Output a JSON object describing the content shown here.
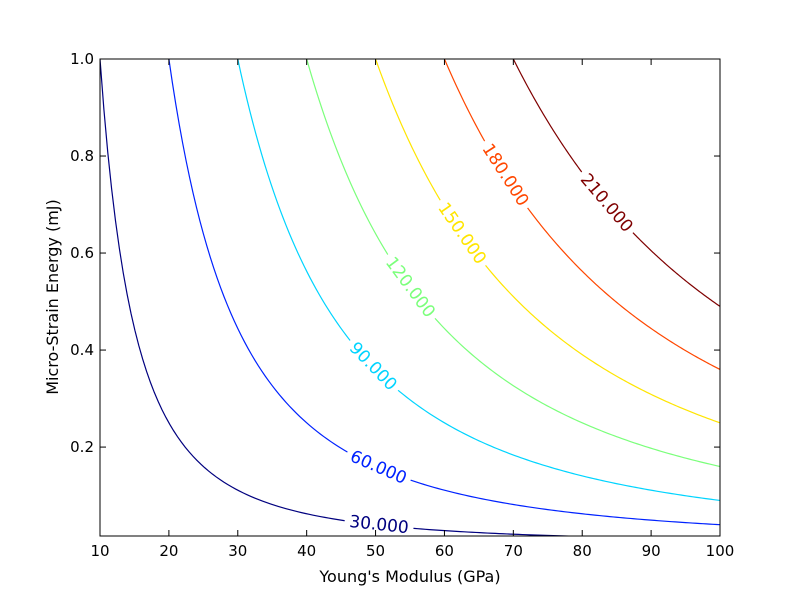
{
  "chart_data": {
    "type": "contour",
    "title": "",
    "xlabel": "Young's Modulus (GPa)",
    "ylabel": "Micro-Strain Energy (mJ)",
    "xlim": [
      10,
      100
    ],
    "ylim": [
      0.0167,
      1.0
    ],
    "xticks": [
      "10",
      "20",
      "30",
      "40",
      "50",
      "60",
      "70",
      "80",
      "90",
      "100"
    ],
    "yticks": [
      "0.2",
      "0.4",
      "0.6",
      "0.8",
      "1.0"
    ],
    "grid": false,
    "legend": "none",
    "levels": [
      {
        "label": "30.000",
        "value": 30,
        "color": "#00007f"
      },
      {
        "label": "60.000",
        "value": 60,
        "color": "#0022ff"
      },
      {
        "label": "90.000",
        "value": 90,
        "color": "#00d4ff"
      },
      {
        "label": "120.000",
        "value": 120,
        "color": "#7bff7b"
      },
      {
        "label": "150.000",
        "value": 150,
        "color": "#ffe500"
      },
      {
        "label": "180.000",
        "value": 180,
        "color": "#ff4700"
      },
      {
        "label": "210.000",
        "value": 210,
        "color": "#7f0000"
      }
    ]
  }
}
